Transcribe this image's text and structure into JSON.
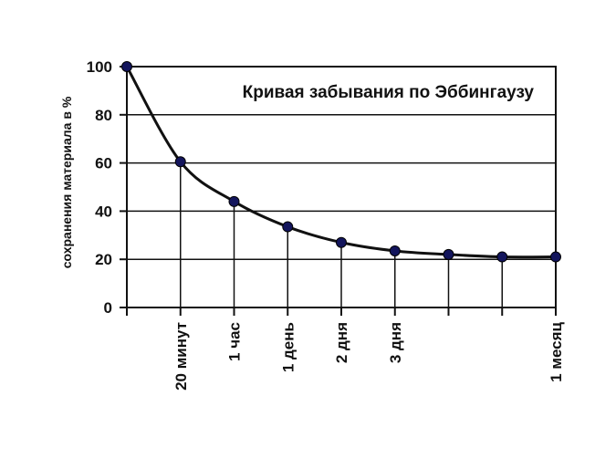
{
  "chart_data": {
    "type": "line",
    "title": "Кривая забывания по Эббингаузу",
    "xlabel": "",
    "ylabel": "сохранения материала в %",
    "ylim": [
      0,
      100
    ],
    "yticks": [
      0,
      20,
      40,
      60,
      80,
      100
    ],
    "grid": true,
    "x_ticks": [
      {
        "index": 0,
        "label": ""
      },
      {
        "index": 1,
        "label": "20 минут"
      },
      {
        "index": 2,
        "label": "1 час"
      },
      {
        "index": 3,
        "label": "1 день"
      },
      {
        "index": 4,
        "label": "2 дня"
      },
      {
        "index": 5,
        "label": "3 дня"
      },
      {
        "index": 6,
        "label": ""
      },
      {
        "index": 7,
        "label": ""
      },
      {
        "index": 8,
        "label": "1 месяц"
      }
    ],
    "series": [
      {
        "values": [
          100,
          60.5,
          44,
          33.5,
          27,
          23.5,
          22,
          21,
          21
        ],
        "color": "#111111",
        "marker_color": "#13155c"
      }
    ]
  }
}
